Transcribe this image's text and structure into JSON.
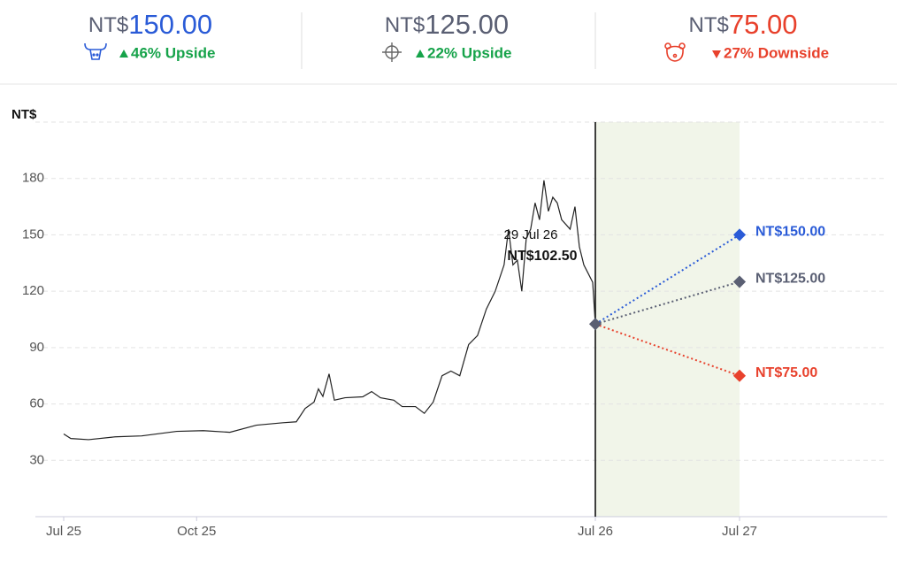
{
  "header": {
    "cards": [
      {
        "currency": "NT$",
        "value": "150.00",
        "change": "46% Upside",
        "color": "#2a5bd7",
        "change_color": "#16a34a",
        "direction": "up"
      },
      {
        "currency": "NT$",
        "value": "125.00",
        "change": "22% Upside",
        "color": "#5a5f73",
        "change_color": "#16a34a",
        "direction": "up"
      },
      {
        "currency": "NT$",
        "value": "75.00",
        "change": "27% Downside",
        "color": "#e8412c",
        "change_color": "#e8412c",
        "direction": "down"
      }
    ]
  },
  "chart_data": {
    "type": "line",
    "y_label": "NT$",
    "annotation": {
      "date": "29 Jul 26",
      "price": "NT$102.50"
    },
    "xlim": [
      0,
      24
    ],
    "xticks": [
      {
        "value": 0,
        "label": "Jul 25"
      },
      {
        "value": 3,
        "label": "Oct 25"
      },
      {
        "value": 12,
        "label": "Jul 26"
      },
      {
        "value": 24,
        "label": "Jul 27"
      }
    ],
    "ylim": [
      0,
      210
    ],
    "yticks": [
      30,
      60,
      90,
      120,
      150,
      180
    ],
    "grid": true,
    "forecast_band": [
      12,
      24
    ],
    "series": [
      {
        "color": "#222222",
        "style": "solid",
        "x": [
          0,
          0.16,
          0.56,
          1.16,
          1.76,
          2.55,
          3.15,
          3.75,
          4.35,
          4.95,
          5.25,
          5.45,
          5.65,
          5.75,
          5.85,
          5.99,
          6.11,
          6.35,
          6.75,
          6.95,
          7.15,
          7.45,
          7.64,
          7.94,
          8.14,
          8.34,
          8.54,
          8.74,
          8.94,
          9.14,
          9.34,
          9.54,
          9.74,
          9.94,
          10.04,
          10.14,
          10.24,
          10.34,
          10.44,
          10.54,
          10.64,
          10.74,
          10.84,
          10.94,
          11.04,
          11.14,
          11.24,
          11.34,
          11.43,
          11.54,
          11.64,
          11.74,
          11.84,
          11.94,
          12
        ],
        "values": [
          44,
          41.6,
          41,
          42.5,
          43,
          45.4,
          45.8,
          44.9,
          48.7,
          50,
          50.5,
          57.6,
          61,
          68,
          64,
          76,
          62,
          63.3,
          63.8,
          66.6,
          63.3,
          62,
          58.6,
          58.6,
          55,
          61,
          75,
          77.5,
          75,
          91.6,
          96.4,
          110.5,
          120,
          134,
          153,
          134,
          136.5,
          120,
          148,
          153,
          167,
          158,
          179,
          162.5,
          170,
          167,
          158,
          155.4,
          153,
          165,
          143.6,
          134,
          129.4,
          124.7,
          102.5
        ]
      },
      {
        "color": "#2a5bd7",
        "style": "dotted",
        "x": [
          12,
          24
        ],
        "values": [
          102.5,
          150
        ],
        "value_labels": [
          null,
          "NT$150.00"
        ]
      },
      {
        "color": "#5a5f73",
        "style": "dotted",
        "x": [
          12,
          24
        ],
        "values": [
          102.5,
          125
        ],
        "value_labels": [
          null,
          "NT$125.00"
        ]
      },
      {
        "color": "#e8412c",
        "style": "dotted",
        "x": [
          12,
          24
        ],
        "values": [
          102.5,
          75
        ],
        "value_labels": [
          null,
          "NT$75.00"
        ]
      }
    ]
  }
}
